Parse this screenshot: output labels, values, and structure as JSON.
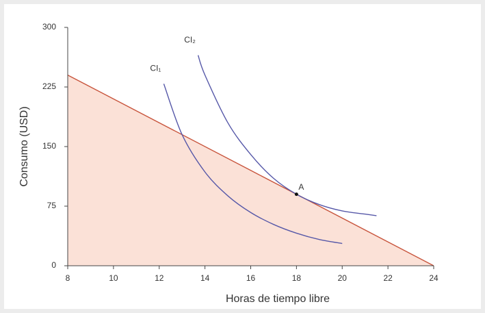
{
  "chart_data": {
    "type": "line",
    "xlabel": "Horas de tiempo libre",
    "ylabel": "Consumo (USD)",
    "xlim": [
      8,
      24
    ],
    "xticks": [
      8,
      10,
      12,
      14,
      16,
      18,
      20,
      22,
      24
    ],
    "ylim": [
      0,
      300
    ],
    "yticks": [
      0,
      75,
      150,
      225,
      300
    ],
    "series": [
      {
        "color": "#c8553d",
        "fill": "#fbe1d7",
        "x": [
          8,
          24
        ],
        "values": [
          240,
          0
        ]
      },
      {
        "name": "CI₁",
        "color": "#5658a8",
        "x": [
          12.2,
          13,
          14,
          15,
          16,
          17,
          18,
          19,
          20
        ],
        "values": [
          229,
          165,
          118,
          88,
          67,
          52,
          41,
          33,
          28
        ]
      },
      {
        "name": "CI₂",
        "color": "#5658a8",
        "x": [
          13.7,
          14,
          15,
          16,
          17,
          18,
          19,
          20,
          21,
          21.5
        ],
        "values": [
          265,
          240,
          180,
          140,
          110,
          90,
          77,
          69,
          65,
          63
        ]
      }
    ],
    "points": [
      {
        "label": "A",
        "x": 18,
        "y": 90
      }
    ]
  }
}
